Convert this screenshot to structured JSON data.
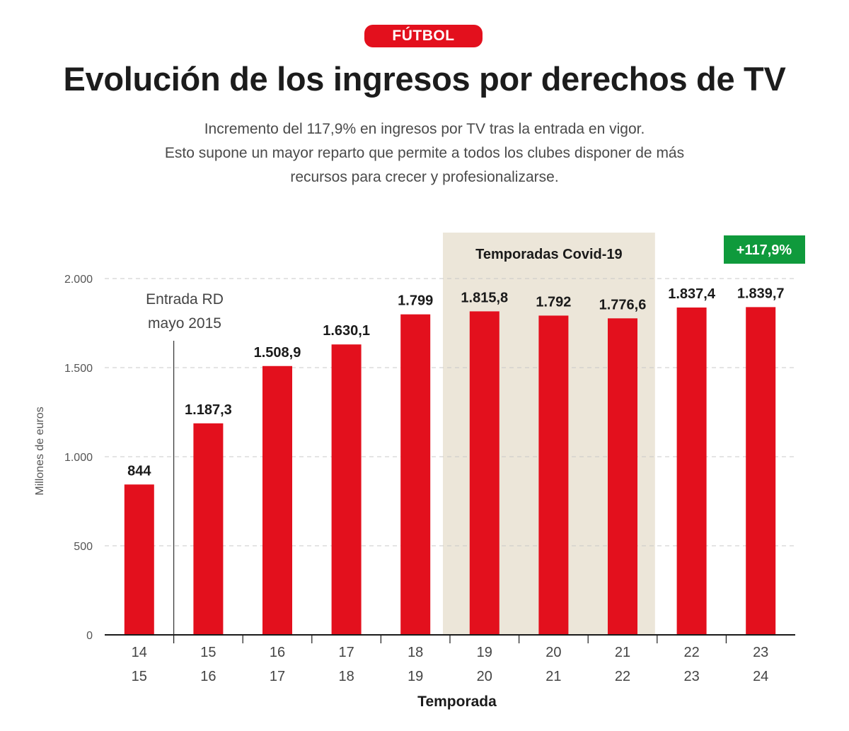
{
  "header": {
    "badge": "FÚTBOL",
    "title": "Evolución de los ingresos por derechos de TV",
    "subtitle_lines": [
      "Incremento del 117,9% en ingresos por TV tras la entrada en vigor.",
      "Esto supone un mayor reparto que permite a todos los clubes disponer de más",
      "recursos para crecer y profesionalizarse."
    ]
  },
  "chart_data": {
    "type": "bar",
    "categories": [
      [
        "14",
        "15"
      ],
      [
        "15",
        "16"
      ],
      [
        "16",
        "17"
      ],
      [
        "17",
        "18"
      ],
      [
        "18",
        "19"
      ],
      [
        "19",
        "20"
      ],
      [
        "20",
        "21"
      ],
      [
        "21",
        "22"
      ],
      [
        "22",
        "23"
      ],
      [
        "23",
        "24"
      ]
    ],
    "values": [
      844,
      1187.3,
      1508.9,
      1630.1,
      1799,
      1815.8,
      1792,
      1776.6,
      1837.4,
      1839.7
    ],
    "value_labels": [
      "844",
      "1.187,3",
      "1.508,9",
      "1.630,1",
      "1.799",
      "1.815,8",
      "1.792",
      "1.776,6",
      "1.837,4",
      "1.839,7"
    ],
    "xlabel": "Temporada",
    "ylabel": "Millones de euros",
    "ylim": [
      0,
      2000
    ],
    "yticks": [
      0,
      500,
      1000,
      1500,
      2000
    ],
    "ytick_labels": [
      "0",
      "500",
      "1.000",
      "1.500",
      "2.000"
    ],
    "grid": true,
    "annotations": {
      "rd_entry": {
        "lines": [
          "Entrada RD",
          "mayo 2015"
        ],
        "after_category_index": 0
      },
      "covid_band": {
        "label": "Temporadas Covid-19",
        "from_index": 5,
        "to_index": 7
      },
      "growth_badge": {
        "label": "+117,9%"
      }
    },
    "colors": {
      "bar": "#e3101d",
      "covid_band": "#ece6d9",
      "growth_badge": "#0f9a3c",
      "grid": "#c8c8c8",
      "axis": "#1a1a1a"
    }
  }
}
